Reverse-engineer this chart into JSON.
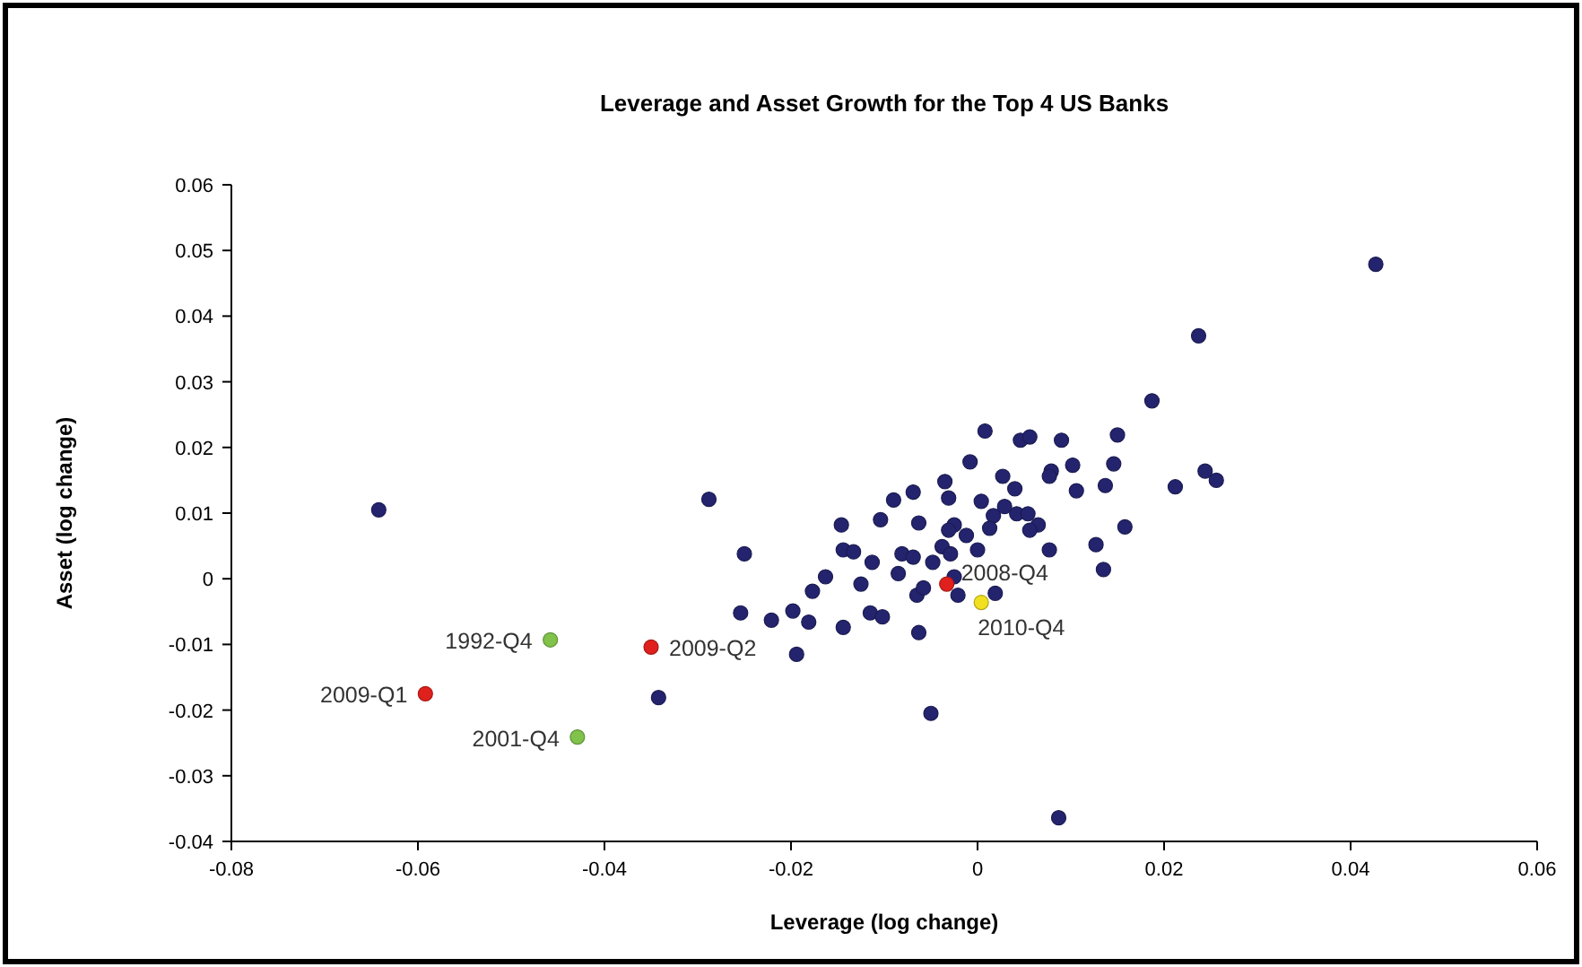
{
  "chart_data": {
    "type": "scatter",
    "title": "Leverage and Asset Growth for the Top 4 US Banks",
    "xlabel": "Leverage (log change)",
    "ylabel": "Asset (log change)",
    "xlim": [
      -0.08,
      0.06
    ],
    "xticks": [
      -0.08,
      -0.06,
      -0.04,
      -0.02,
      0,
      0.02,
      0.04,
      0.06
    ],
    "ylim": [
      -0.04,
      0.06
    ],
    "yticks": [
      -0.04,
      -0.03,
      -0.02,
      -0.01,
      0,
      0.01,
      0.02,
      0.03,
      0.04,
      0.05,
      0.06
    ],
    "grid": false,
    "marker": "circle",
    "series": [
      {
        "color": "#24246e",
        "x": [
          -0.0642,
          -0.0342,
          -0.0288,
          -0.025,
          -0.0254,
          -0.0221,
          -0.0198,
          -0.0181,
          -0.0194,
          0.0237,
          0.0187,
          0.0008,
          0.0046,
          0.0056,
          0.009,
          0.015,
          -0.0008,
          0.0146,
          0.0027,
          0.0079,
          0.0077,
          0.0102,
          0.0137,
          0.0106,
          0.004,
          0.0244,
          0.0256,
          0.0212,
          -0.0035,
          -0.0069,
          -0.009,
          -0.0031,
          0.0004,
          0.0029,
          0.0017,
          0.0042,
          0.0054,
          0.0065,
          0.0056,
          0.0158,
          0.0127,
          -0.0146,
          -0.0104,
          -0.0063,
          -0.0025,
          -0.0031,
          -0.0012,
          0.0013,
          -0.0144,
          -0.0133,
          -0.0113,
          -0.0081,
          -0.0069,
          -0.0048,
          -0.0038,
          -0.0029,
          0,
          0.0077,
          0.0135,
          0.0427,
          -0.0163,
          -0.0125,
          -0.0085,
          -0.0177,
          -0.0144,
          -0.0115,
          -0.0102,
          -0.0065,
          -0.0058,
          -0.0025,
          -0.0021,
          0.0019,
          -0.0063,
          -0.005,
          0.0087
        ],
        "values": [
          0.0105,
          -0.0181,
          0.0121,
          0.0038,
          -0.0052,
          -0.0063,
          -0.0049,
          -0.0066,
          -0.0115,
          0.037,
          0.0271,
          0.0225,
          0.0211,
          0.0216,
          0.0211,
          0.0219,
          0.0178,
          0.0175,
          0.0156,
          0.0164,
          0.0156,
          0.0173,
          0.0142,
          0.0134,
          0.0137,
          0.0164,
          0.015,
          0.014,
          0.0148,
          0.0132,
          0.012,
          0.0123,
          0.0118,
          0.011,
          0.0096,
          0.0099,
          0.0099,
          0.0082,
          0.0074,
          0.0079,
          0.0052,
          0.0082,
          0.009,
          0.0085,
          0.0082,
          0.0074,
          0.0066,
          0.0077,
          0.0044,
          0.0041,
          0.0025,
          0.0038,
          0.0033,
          0.0025,
          0.0049,
          0.0038,
          0.0044,
          0.0044,
          0.0014,
          0.0479,
          0.0003,
          -0.0008,
          0.0008,
          -0.0019,
          -0.0074,
          -0.0052,
          -0.0058,
          -0.0025,
          -0.0014,
          0.0003,
          -0.0025,
          -0.0022,
          -0.0082,
          -0.0205,
          -0.0364
        ]
      },
      {
        "color": "#e0201c",
        "x": [
          -0.0592,
          -0.035,
          -0.0033
        ],
        "values": [
          -0.0175,
          -0.0104,
          -0.0008
        ]
      },
      {
        "color": "#80c24a",
        "x": [
          -0.0458,
          -0.0429
        ],
        "values": [
          -0.0093,
          -0.0241
        ]
      },
      {
        "color": "#f0e020",
        "x": [
          0.0004
        ],
        "values": [
          -0.0036
        ]
      }
    ],
    "annotations": [
      {
        "text": "2008-Q4",
        "x": -0.0033,
        "y": -0.0008
      },
      {
        "text": "2010-Q4",
        "x": 0.0004,
        "y": -0.0036
      },
      {
        "text": "1992-Q4",
        "x": -0.0458,
        "y": -0.0093
      },
      {
        "text": "2009-Q2",
        "x": -0.035,
        "y": -0.0104
      },
      {
        "text": "2009-Q1",
        "x": -0.0592,
        "y": -0.0175
      },
      {
        "text": "2001-Q4",
        "x": -0.0429,
        "y": -0.0241
      }
    ]
  }
}
